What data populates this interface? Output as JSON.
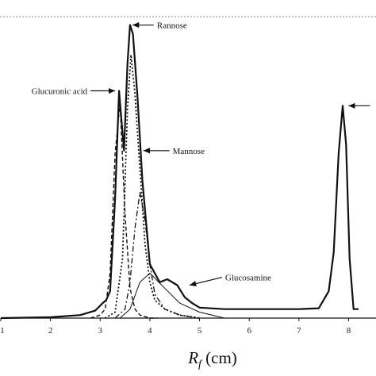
{
  "chart_data": {
    "type": "line",
    "xlabel": "R_f (cm)",
    "x_ticks": [
      "1",
      "2",
      "3",
      "4",
      "5",
      "6",
      "7",
      "8"
    ],
    "xlim": [
      1,
      8.2
    ],
    "ylim": [
      0,
      100
    ],
    "grid": false,
    "annotations": [
      {
        "label": "Rannose",
        "x": 3.6,
        "y": 98
      },
      {
        "label": "Glucuronic acid",
        "x": 3.35,
        "y": 76
      },
      {
        "label": "Mannose",
        "x": 3.82,
        "y": 56
      },
      {
        "label": "Glucosamine",
        "x": 4.75,
        "y": 11
      },
      {
        "label": "",
        "x": 7.95,
        "y": 71
      }
    ],
    "series": [
      {
        "style": "solid",
        "x": [
          1.0,
          2.0,
          2.6,
          2.9,
          3.05,
          3.12,
          3.2,
          3.3,
          3.38,
          3.48,
          3.55,
          3.6,
          3.66,
          3.75,
          3.85,
          4.0,
          4.2,
          4.35,
          4.55,
          4.7,
          4.85,
          5.0,
          5.5,
          6.0,
          6.5,
          7.0,
          7.4,
          7.6,
          7.7,
          7.8,
          7.88,
          7.95,
          8.02,
          8.1,
          8.2
        ],
        "y": [
          0,
          0.3,
          1,
          2.5,
          5,
          6,
          9,
          40,
          76,
          56,
          85,
          98,
          95,
          74,
          46,
          18,
          12,
          13,
          11,
          7,
          5,
          3.5,
          3,
          3,
          3,
          3,
          3.3,
          9,
          22,
          55,
          71,
          58,
          20,
          3,
          3
        ]
      },
      {
        "style": "dashed",
        "x": [
          2.8,
          3.0,
          3.1,
          3.2,
          3.3,
          3.4,
          3.5,
          3.6,
          3.7,
          3.8,
          3.9,
          4.0,
          4.15
        ],
        "y": [
          0,
          1,
          3,
          15,
          55,
          72,
          35,
          10,
          3,
          1,
          0.5,
          0,
          0
        ]
      },
      {
        "style": "dotted",
        "x": [
          3.1,
          3.3,
          3.45,
          3.55,
          3.62,
          3.7,
          3.8,
          3.9,
          4.0,
          4.1,
          4.3,
          4.6,
          5.0
        ],
        "y": [
          0,
          2,
          20,
          70,
          88,
          75,
          50,
          25,
          12,
          6,
          3,
          1,
          0
        ]
      },
      {
        "style": "dashdot",
        "x": [
          3.3,
          3.5,
          3.6,
          3.7,
          3.8,
          3.9,
          4.0,
          4.1,
          4.3,
          4.6,
          5.0
        ],
        "y": [
          0,
          3,
          12,
          30,
          42,
          33,
          18,
          8,
          3,
          1,
          0
        ]
      },
      {
        "style": "thin",
        "x": [
          3.4,
          3.6,
          3.8,
          4.0,
          4.3,
          4.6,
          5.0,
          5.5
        ],
        "y": [
          0,
          3,
          12,
          15,
          10,
          5,
          2,
          0
        ]
      }
    ]
  }
}
